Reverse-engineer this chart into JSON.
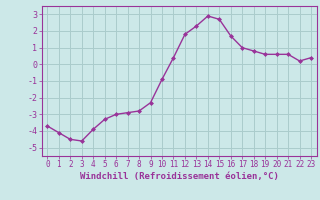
{
  "x": [
    0,
    1,
    2,
    3,
    4,
    5,
    6,
    7,
    8,
    9,
    10,
    11,
    12,
    13,
    14,
    15,
    16,
    17,
    18,
    19,
    20,
    21,
    22,
    23
  ],
  "y": [
    -3.7,
    -4.1,
    -4.5,
    -4.6,
    -3.9,
    -3.3,
    -3.0,
    -2.9,
    -2.8,
    -2.3,
    -0.9,
    0.4,
    1.8,
    2.3,
    2.9,
    2.7,
    1.7,
    1.0,
    0.8,
    0.6,
    0.6,
    0.6,
    0.2,
    0.4
  ],
  "xlabel": "Windchill (Refroidissement éolien,°C)",
  "ylim": [
    -5.5,
    3.5
  ],
  "xlim": [
    -0.5,
    23.5
  ],
  "yticks": [
    -5,
    -4,
    -3,
    -2,
    -1,
    0,
    1,
    2,
    3
  ],
  "xticks": [
    0,
    1,
    2,
    3,
    4,
    5,
    6,
    7,
    8,
    9,
    10,
    11,
    12,
    13,
    14,
    15,
    16,
    17,
    18,
    19,
    20,
    21,
    22,
    23
  ],
  "line_color": "#993399",
  "marker": "D",
  "marker_size": 2.0,
  "bg_color": "#cce8e8",
  "grid_color": "#aacccc",
  "font_color": "#993399",
  "tick_fontsize": 5.5,
  "xlabel_fontsize": 6.5
}
